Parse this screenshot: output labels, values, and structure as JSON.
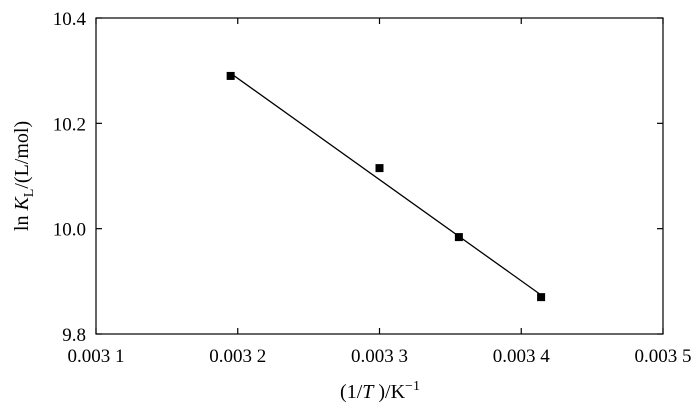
{
  "chart_data": {
    "type": "scatter",
    "xlabel": {
      "pre": "(1/",
      "var": "T",
      "post": " )/K",
      "sup": "−1"
    },
    "ylabel": {
      "pre": "ln ",
      "var": "K",
      "sub": "L",
      "post": "/(L/mol)"
    },
    "xlim": [
      0.0031,
      0.0035
    ],
    "ylim": [
      9.8,
      10.4
    ],
    "xticks": [
      0.0031,
      0.0032,
      0.0033,
      0.0034,
      0.0035
    ],
    "xtick_labels": [
      "0.003 1",
      "0.003 2",
      "0.003 3",
      "0.003 4",
      "0.003 5"
    ],
    "yticks": [
      9.8,
      10.0,
      10.2,
      10.4
    ],
    "ytick_labels": [
      "9.8",
      "10.0",
      "10.2",
      "10.4"
    ],
    "points": [
      {
        "x": 0.003195,
        "y": 10.29
      },
      {
        "x": 0.0033,
        "y": 10.115
      },
      {
        "x": 0.003356,
        "y": 9.984
      },
      {
        "x": 0.003414,
        "y": 9.87
      }
    ],
    "fit_line": {
      "x": [
        0.003195,
        0.003414
      ],
      "y": [
        10.295,
        9.874
      ]
    },
    "grid": false,
    "marker": "square"
  }
}
